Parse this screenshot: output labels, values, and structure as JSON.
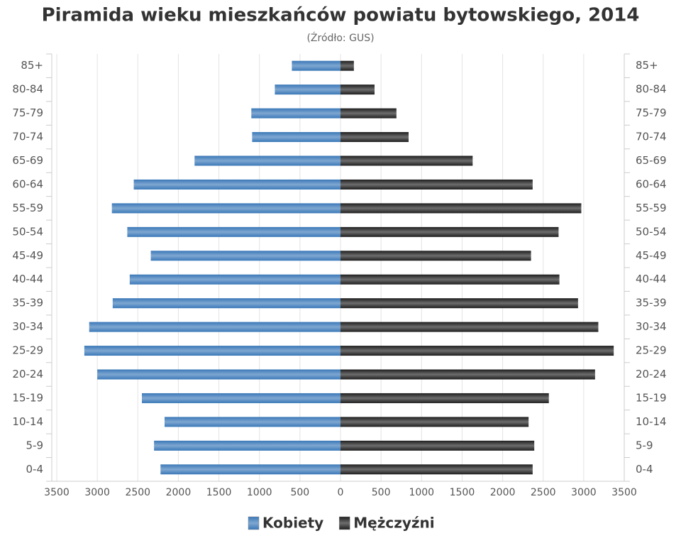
{
  "chart_data": {
    "type": "pyramid",
    "title": "Piramida wieku mieszkańców powiatu bytowskiego, 2014",
    "subtitle": "(Źródło: GUS)",
    "categories": [
      "85+",
      "80-84",
      "75-79",
      "70-74",
      "65-69",
      "60-64",
      "55-59",
      "50-54",
      "45-49",
      "40-44",
      "35-39",
      "30-34",
      "25-29",
      "20-24",
      "15-19",
      "10-14",
      "5-9",
      "0-4"
    ],
    "series": [
      {
        "name": "Kobiety",
        "color": "#3a78b8",
        "side": "left",
        "values": [
          600,
          810,
          1100,
          1090,
          1800,
          2550,
          2820,
          2630,
          2340,
          2600,
          2810,
          3100,
          3160,
          3000,
          2450,
          2170,
          2300,
          2220
        ]
      },
      {
        "name": "Mężczyźni",
        "color": "#1e1e1e",
        "side": "right",
        "values": [
          165,
          420,
          690,
          840,
          1630,
          2370,
          2970,
          2690,
          2350,
          2700,
          2930,
          3180,
          3370,
          3140,
          2570,
          2320,
          2390,
          2370
        ]
      }
    ],
    "xlim": [
      0,
      3500
    ],
    "xticks": [
      0,
      500,
      1000,
      1500,
      2000,
      2500,
      3000,
      3500
    ],
    "grid": true
  }
}
